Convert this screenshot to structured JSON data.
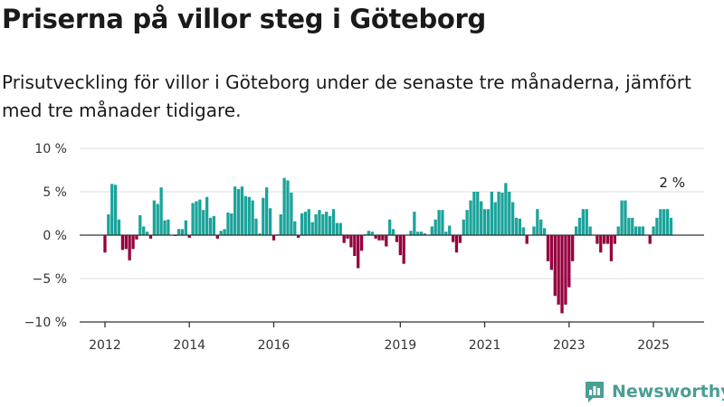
{
  "header": {
    "title": "Priserna på villor steg i Göteborg",
    "subtitle": "Prisutveckling för villor i Göteborg under de senaste tre månaderna, jämfört med tre månader tidigare."
  },
  "brand": {
    "name": "Newsworthy",
    "logo_icon": "bar-chart-logo-icon",
    "color": "#4a9e92"
  },
  "colors": {
    "positive": "#1aa39a",
    "negative": "#96003d",
    "grid": "#dddddd",
    "zero_line": "#333333"
  },
  "chart_data": {
    "type": "bar",
    "title": "Priserna på villor steg i Göteborg",
    "xlabel": "",
    "ylabel": "",
    "unit": "%",
    "ylim": [
      -10,
      10
    ],
    "yticks": [
      10,
      5,
      0,
      -5,
      -10
    ],
    "ytick_labels": [
      "10 %",
      "5 %",
      "0 %",
      "−5 %",
      "−10 %"
    ],
    "xticks": [
      2012,
      2014,
      2016,
      2019,
      2021,
      2023,
      2025
    ],
    "xlim": [
      2011.4,
      2026.2
    ],
    "grid": "horizontal",
    "annotation": {
      "text": "2 %",
      "x": 2025.4,
      "y": 2
    },
    "x": [
      2012.0,
      2012.083,
      2012.167,
      2012.25,
      2012.333,
      2012.417,
      2012.5,
      2012.583,
      2012.667,
      2012.75,
      2012.833,
      2012.917,
      2013.0,
      2013.083,
      2013.167,
      2013.25,
      2013.333,
      2013.417,
      2013.5,
      2013.583,
      2013.667,
      2013.75,
      2013.833,
      2013.917,
      2014.0,
      2014.083,
      2014.167,
      2014.25,
      2014.333,
      2014.417,
      2014.5,
      2014.583,
      2014.667,
      2014.75,
      2014.833,
      2014.917,
      2015.0,
      2015.083,
      2015.167,
      2015.25,
      2015.333,
      2015.417,
      2015.5,
      2015.583,
      2015.667,
      2015.75,
      2015.833,
      2015.917,
      2016.0,
      2016.083,
      2016.167,
      2016.25,
      2016.333,
      2016.417,
      2016.5,
      2016.583,
      2016.667,
      2016.75,
      2016.833,
      2016.917,
      2017.0,
      2017.083,
      2017.167,
      2017.25,
      2017.333,
      2017.417,
      2017.5,
      2017.583,
      2017.667,
      2017.75,
      2017.833,
      2017.917,
      2018.0,
      2018.083,
      2018.167,
      2018.25,
      2018.333,
      2018.417,
      2018.5,
      2018.583,
      2018.667,
      2018.75,
      2018.833,
      2018.917,
      2019.0,
      2019.083,
      2019.167,
      2019.25,
      2019.333,
      2019.417,
      2019.5,
      2019.583,
      2019.667,
      2019.75,
      2019.833,
      2019.917,
      2020.0,
      2020.083,
      2020.167,
      2020.25,
      2020.333,
      2020.417,
      2020.5,
      2020.583,
      2020.667,
      2020.75,
      2020.833,
      2020.917,
      2021.0,
      2021.083,
      2021.167,
      2021.25,
      2021.333,
      2021.417,
      2021.5,
      2021.583,
      2021.667,
      2021.75,
      2021.833,
      2021.917,
      2022.0,
      2022.083,
      2022.167,
      2022.25,
      2022.333,
      2022.417,
      2022.5,
      2022.583,
      2022.667,
      2022.75,
      2022.833,
      2022.917,
      2023.0,
      2023.083,
      2023.167,
      2023.25,
      2023.333,
      2023.417,
      2023.5,
      2023.583,
      2023.667,
      2023.75,
      2023.833,
      2023.917,
      2024.0,
      2024.083,
      2024.167,
      2024.25,
      2024.333,
      2024.417,
      2024.5,
      2024.583,
      2024.667,
      2024.75,
      2024.833,
      2024.917,
      2025.0,
      2025.083,
      2025.167,
      2025.25,
      2025.333,
      2025.417
    ],
    "values": [
      -2.0,
      2.4,
      5.9,
      5.8,
      1.8,
      -1.7,
      -1.6,
      -2.9,
      -1.6,
      -0.5,
      2.3,
      1.0,
      0.4,
      -0.4,
      4.0,
      3.6,
      5.5,
      1.7,
      1.8,
      0.0,
      -0.1,
      0.7,
      0.7,
      1.7,
      -0.3,
      3.7,
      3.9,
      4.1,
      2.9,
      4.4,
      2.0,
      2.2,
      -0.4,
      0.5,
      0.7,
      2.6,
      2.5,
      5.6,
      5.3,
      5.6,
      4.5,
      4.4,
      4.0,
      1.9,
      0.2,
      4.3,
      5.5,
      3.1,
      -0.6,
      0.1,
      2.4,
      6.6,
      6.3,
      4.9,
      1.6,
      -0.3,
      2.5,
      2.7,
      3.0,
      1.5,
      2.4,
      2.9,
      2.4,
      2.7,
      2.2,
      3.0,
      1.4,
      1.4,
      -0.9,
      -0.4,
      -1.4,
      -2.4,
      -3.8,
      -1.8,
      0.1,
      0.5,
      0.4,
      -0.4,
      -0.6,
      -0.6,
      -1.3,
      1.8,
      0.7,
      -0.8,
      -2.3,
      -3.3,
      0.0,
      0.5,
      2.7,
      0.4,
      0.4,
      0.2,
      0.0,
      1.0,
      1.8,
      2.9,
      2.9,
      0.4,
      1.1,
      -0.8,
      -2.0,
      -0.9,
      1.8,
      2.9,
      4.0,
      5.0,
      5.0,
      3.9,
      3.0,
      3.0,
      5.0,
      3.8,
      5.0,
      4.9,
      6.0,
      5.0,
      3.8,
      2.0,
      1.9,
      0.9,
      -1.0,
      0.0,
      1.0,
      3.0,
      1.8,
      0.8,
      -3.0,
      -4.0,
      -7.0,
      -8.0,
      -9.0,
      -8.0,
      -6.0,
      -3.0,
      1.0,
      2.0,
      3.0,
      3.0,
      1.0,
      0.0,
      -1.0,
      -2.0,
      -1.0,
      -1.0,
      -3.0,
      -1.0,
      1.0,
      4.0,
      4.0,
      2.0,
      2.0,
      1.0,
      1.0,
      1.0,
      0.0,
      -1.0,
      1.0,
      2.0,
      3.0,
      3.0,
      3.0,
      2.0
    ]
  }
}
